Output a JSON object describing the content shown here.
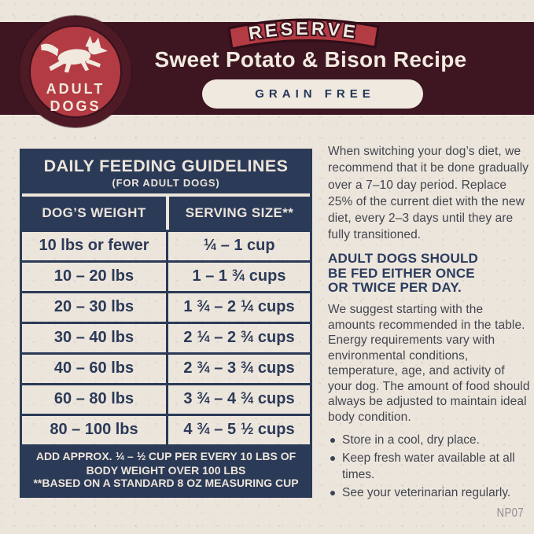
{
  "header": {
    "badge": "RESERVE",
    "logo": {
      "icon": "running-dog",
      "line1": "ADULT",
      "line2": "DOGS"
    },
    "title": "Sweet Potato & Bison Recipe",
    "diet_tag": "GRAIN FREE"
  },
  "table": {
    "title": "DAILY FEEDING GUIDELINES",
    "subtitle": "(FOR ADULT DOGS)",
    "columns": {
      "weight": "DOG’S WEIGHT",
      "serving": "SERVING SIZE**"
    },
    "rows": [
      {
        "weight": "10 lbs or fewer",
        "serving": "1/4 – 1 cup"
      },
      {
        "weight": "10 – 20 lbs",
        "serving": "1 – 1 3/4 cups"
      },
      {
        "weight": "20 – 30 lbs",
        "serving": "1 3/4 –  2 1/4 cups"
      },
      {
        "weight": "30 – 40 lbs",
        "serving": "2 1/4 – 2 3/4 cups"
      },
      {
        "weight": "40 – 60 lbs",
        "serving": "2 3/4 – 3 3/4 cups"
      },
      {
        "weight": "60 – 80 lbs",
        "serving": "3 3/4 – 4 3/4 cups"
      },
      {
        "weight": "80 – 100 lbs",
        "serving": "4 3/4 – 5 1/2 cups"
      }
    ],
    "note1": "ADD APPROX. 1/4 – 1/2 CUP PER EVERY 10 LBS OF BODY WEIGHT OVER 100 LBS",
    "note2": "**BASED ON A STANDARD 8 OZ MEASURING CUP"
  },
  "info": {
    "p1": "When switching your dog’s diet, we recommend that it be done gradually over a 7–10 day period. Replace 25% of the current diet with the new diet, every 2–3 days until they are fully transitioned.",
    "heading": "ADULT DOGS SHOULD BE FED EITHER ONCE OR TWICE PER DAY.",
    "p2": "We suggest starting with the amounts recommended in the table. Energy requirements vary with environmental conditions, temperature, age, and activity of your dog. The amount of food should always be adjusted to maintain ideal body condition.",
    "bullets": [
      "Store in a cool, dry place.",
      "Keep fresh water available at all times.",
      "See your veterinarian regularly."
    ],
    "code": "NP07"
  },
  "colors": {
    "band_maroon": "#3e1622",
    "logo_red": "#b33b43",
    "navy": "#2b3a57",
    "cream_bg": "#ece5dc",
    "cream_text": "#f1e9de",
    "body_text": "#42464f",
    "code_gray": "#8e8e94"
  }
}
